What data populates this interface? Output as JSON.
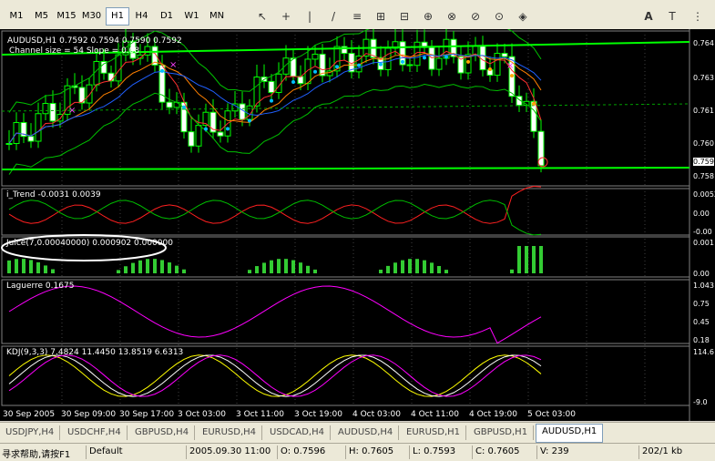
{
  "toolbar": {
    "timeframes": [
      "M1",
      "M5",
      "M15",
      "M30",
      "H1",
      "H4",
      "D1",
      "W1",
      "MN"
    ],
    "active": "H1",
    "text_tool": "A"
  },
  "main_panel": {
    "header": "AUDUSD,H1  0.7592 0.7594 0.7590 0.7592",
    "subheader": "Channel size = 54 Slope = 0.08",
    "price_labels": [
      "0.764",
      "0.763",
      "0.761",
      "0.760",
      "0.759",
      "0.758"
    ],
    "current_price": "0.759"
  },
  "panels": [
    {
      "header": "i_Trend -0.0031 0.0039",
      "scale": [
        "0.0052",
        "0.00",
        "-0.00"
      ]
    },
    {
      "header": "Juice(7,0.00040000) 0.000902 0.000000",
      "scale": [
        "0.001",
        "0.00"
      ]
    },
    {
      "header": "Laguerre 0.1675",
      "scale": [
        "1.043",
        "0.75",
        "0.45",
        "0.18"
      ]
    },
    {
      "header": "KDJ(9,3,3) 7.4824 11.4450 13.8519 6.6313",
      "scale": [
        "114.6",
        "-9.0"
      ]
    }
  ],
  "time_axis": [
    "30 Sep 2005",
    "30 Sep 09:00",
    "30 Sep 17:00",
    "3 Oct 03:00",
    "3 Oct 11:00",
    "3 Oct 19:00",
    "4 Oct 03:00",
    "4 Oct 11:00",
    "4 Oct 19:00",
    "5 Oct 03:00"
  ],
  "tabs": [
    "USDJPY,H4",
    "USDCHF,H4",
    "GBPUSD,H4",
    "EURUSD,H4",
    "USDCAD,H4",
    "AUDUSD,H4",
    "EURUSD,H1",
    "GBPUSD,H1",
    "AUDUSD,H1"
  ],
  "active_tab": "AUDUSD,H1",
  "status": {
    "help": "寻求帮助,请按F1",
    "profile": "Default",
    "time": "2005.09.30 11:00",
    "open": "O: 0.7596",
    "high": "H: 0.7605",
    "low": "L: 0.7593",
    "close": "C: 0.7605",
    "volume": "V: 239",
    "traffic": "202/1 kb"
  }
}
